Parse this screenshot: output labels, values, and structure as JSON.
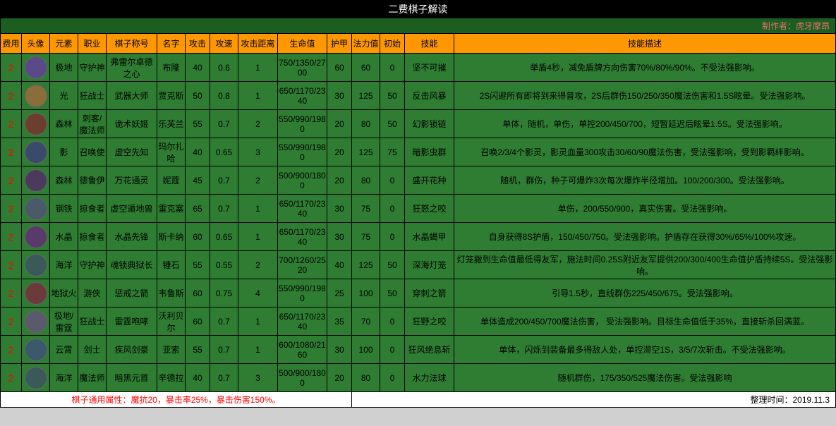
{
  "title": "二费棋子解读",
  "author_label": "制作者：虎牙摩昂",
  "headers": [
    "费用",
    "头像",
    "元素",
    "职业",
    "棋子称号",
    "名字",
    "攻击",
    "攻速",
    "攻击距离",
    "生命值",
    "护甲",
    "法力值",
    "初始",
    "技能",
    "技能描述"
  ],
  "avatar_colors": [
    "#5b4a8a",
    "#8a6d3b",
    "#6b3e2e",
    "#3a4a6b",
    "#4a3a5b",
    "#4a5a6b",
    "#5a3a6b",
    "#3a5a5a",
    "#6b3a3a",
    "#5a5a6b",
    "#3a5a6b",
    "#3a5a5a"
  ],
  "rows": [
    {
      "cost": "2",
      "el": "极地",
      "job": "守护神",
      "title": "弗雷尔卓德之心",
      "name": "布隆",
      "atk": "40",
      "as": "0.6",
      "rng": "1",
      "hp": "750/1350/2700",
      "arm": "60",
      "mp": "60",
      "init": "0",
      "sk": "坚不可摧",
      "desc": "举盾4秒，减免盾牌方向伤害70%/80%/90%。不受法强影响。"
    },
    {
      "cost": "2",
      "el": "光",
      "job": "狂战士",
      "title": "武器大师",
      "name": "贾克斯",
      "atk": "50",
      "as": "0.8",
      "rng": "1",
      "hp": "650/1170/2340",
      "arm": "30",
      "mp": "125",
      "init": "50",
      "sk": "反击风暴",
      "desc": "2S闪避所有即将到来得普攻，2S后群伤150/250/350魔法伤害和1.5S眩晕。受法强影响。"
    },
    {
      "cost": "2",
      "el": "森林",
      "job": "刺客/魔法师",
      "title": "诡术妖姬",
      "name": "乐芙兰",
      "atk": "55",
      "as": "0.7",
      "rng": "2",
      "hp": "550/990/1980",
      "arm": "20",
      "mp": "80",
      "init": "50",
      "sk": "幻影锁链",
      "desc": "单体，随机，单伤，单控200/450/700，短暂延迟后眩晕1.5S。受法强影响。"
    },
    {
      "cost": "2",
      "el": "影",
      "job": "召唤使",
      "title": "虚空先知",
      "name": "玛尔扎哈",
      "atk": "40",
      "as": "0.65",
      "rng": "3",
      "hp": "550/990/1980",
      "arm": "20",
      "mp": "125",
      "init": "75",
      "sk": "暗影虫群",
      "desc": "召唤2/3/4个影灵，影灵血量300攻击30/60/90魔法伤害，受法强影响，受到影羁绊影响。"
    },
    {
      "cost": "2",
      "el": "森林",
      "job": "德鲁伊",
      "title": "万花通灵",
      "name": "妮蔻",
      "atk": "45",
      "as": "0.7",
      "rng": "2",
      "hp": "500/900/1800",
      "arm": "20",
      "mp": "80",
      "init": "0",
      "sk": "盛开花种",
      "desc": "随机，群伤，种子可爆炸3次每次爆炸半径增加。100/200/300。受法强影响。"
    },
    {
      "cost": "2",
      "el": "钢铁",
      "job": "掠食者",
      "title": "虚空遁地兽",
      "name": "雷克塞",
      "atk": "65",
      "as": "0.7",
      "rng": "1",
      "hp": "650/1170/2340",
      "arm": "30",
      "mp": "75",
      "init": "0",
      "sk": "狂怒之咬",
      "desc": "单伤，200/550/900，真实伤害。受法强影响。"
    },
    {
      "cost": "2",
      "el": "水晶",
      "job": "掠食者",
      "title": "水晶先锋",
      "name": "斯卡纳",
      "atk": "60",
      "as": "0.65",
      "rng": "1",
      "hp": "650/1170/2340",
      "arm": "30",
      "mp": "75",
      "init": "0",
      "sk": "水晶蝎甲",
      "desc": "自身获得8S护盾，150/450/750。受法强影响。护盾存在获得30%/65%/100%攻速。"
    },
    {
      "cost": "2",
      "el": "海洋",
      "job": "守护神",
      "title": "魂锁典狱长",
      "name": "锤石",
      "atk": "55",
      "as": "0.55",
      "rng": "2",
      "hp": "700/1260/2520",
      "arm": "40",
      "mp": "125",
      "init": "50",
      "sk": "深海灯笼",
      "desc": "灯笼撇到生命值最低得友军，施法时间0.25S附近友军提供200/300/400生命值护盾持续5S。受法强影响。"
    },
    {
      "cost": "2",
      "el": "地狱火",
      "job": "游侠",
      "title": "惩戒之箭",
      "name": "韦鲁斯",
      "atk": "60",
      "as": "0.75",
      "rng": "4",
      "hp": "550/990/1980",
      "arm": "25",
      "mp": "100",
      "init": "50",
      "sk": "穿刺之箭",
      "desc": "引导1.5秒，直线群伤225/450/675。受法强影响。"
    },
    {
      "cost": "2",
      "el": "极地/雷霆",
      "job": "狂战士",
      "title": "雷霆咆哮",
      "name": "沃利贝尔",
      "atk": "60",
      "as": "0.7",
      "rng": "1",
      "hp": "650/1170/2340",
      "arm": "35",
      "mp": "70",
      "init": "0",
      "sk": "狂野之咬",
      "desc": "单体造成200/450/700魔法伤害， 受法强影响。目标生命值低于35%，直接斩杀回满蓝。"
    },
    {
      "cost": "2",
      "el": "云霄",
      "job": "剑士",
      "title": "疾风剑豪",
      "name": "亚索",
      "atk": "55",
      "as": "0.7",
      "rng": "1",
      "hp": "600/1080/2160",
      "arm": "30",
      "mp": "100",
      "init": "0",
      "sk": "狂风绝息斩",
      "desc": "单体，闪烁到装备最多得敌人处，单控滞空1S，3/5/7次斩击。不受法强影响。"
    },
    {
      "cost": "2",
      "el": "海洋",
      "job": "魔法师",
      "title": "暗黑元首",
      "name": "辛德拉",
      "atk": "40",
      "as": "0.7",
      "rng": "3",
      "hp": "500/900/1800",
      "arm": "20",
      "mp": "80",
      "init": "0",
      "sk": "水力法球",
      "desc": "随机群伤，175/350/525魔法伤害。受法强影响"
    }
  ],
  "footer_note": "棋子通用属性：魔抗20，暴击率25%，暴击伤害150%。",
  "footer_date": "整理时间：2019.11.3"
}
